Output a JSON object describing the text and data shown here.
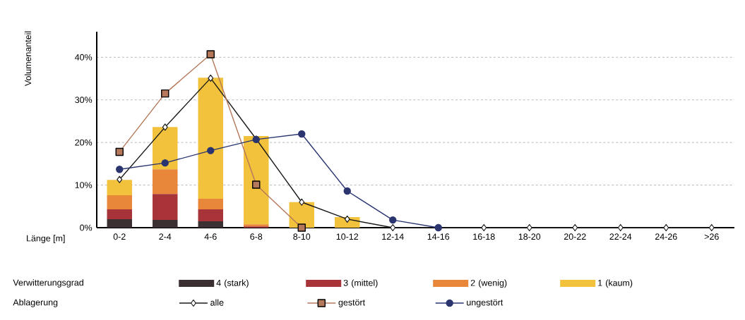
{
  "chart_data": {
    "type": "bar",
    "stacked": true,
    "xlabel": "Länge [m]",
    "ylabel": "Volumenanteil",
    "categories": [
      "0-2",
      "2-4",
      "4-6",
      "6-8",
      "8-10",
      "10-12",
      "12-14",
      "14-16",
      "16-18",
      "18-20",
      "20-22",
      "22-24",
      "24-26",
      ">26"
    ],
    "series": [
      {
        "name": "4 (stark)",
        "color": "#3a3032",
        "values": [
          2,
          1.8,
          1.5,
          0,
          0,
          0,
          0,
          0,
          0,
          0,
          0,
          0,
          0,
          0
        ]
      },
      {
        "name": "3 (mittel)",
        "color": "#a8343a",
        "values": [
          2.3,
          6.1,
          2.8,
          0.3,
          0,
          0,
          0,
          0,
          0,
          0,
          0,
          0,
          0,
          0
        ]
      },
      {
        "name": "2 (wenig)",
        "color": "#e8873a",
        "values": [
          3.3,
          5.8,
          2.5,
          0.5,
          0,
          0,
          0,
          0,
          0,
          0,
          0,
          0,
          0,
          0
        ]
      },
      {
        "name": "1 (kaum)",
        "color": "#f2c23c",
        "values": [
          3.6,
          9.9,
          28.4,
          20.7,
          6,
          2.5,
          0,
          0,
          0,
          0,
          0,
          0,
          0,
          0
        ]
      },
      {
        "name": "alle",
        "type": "line",
        "marker": "diamond",
        "color": "#1a1a1a",
        "values": [
          11.3,
          23.6,
          35.1,
          20.8,
          6,
          2,
          0,
          0,
          0,
          0,
          0,
          0,
          0,
          0
        ]
      },
      {
        "name": "gestört",
        "type": "line",
        "marker": "square",
        "color": "#b5785a",
        "values": [
          17.8,
          31.5,
          40.7,
          10.1,
          0,
          null,
          null,
          null,
          null,
          null,
          null,
          null,
          null,
          null
        ]
      },
      {
        "name": "ungestört",
        "type": "line",
        "marker": "circle",
        "color": "#2a3570",
        "values": [
          13.7,
          15.2,
          18.1,
          20.7,
          22,
          8.6,
          1.8,
          0,
          null,
          null,
          null,
          null,
          null,
          null
        ]
      }
    ],
    "ylim": [
      0,
      46
    ],
    "yticks": [
      {
        "value": 0,
        "label": "0%"
      },
      {
        "value": 10,
        "label": "10%"
      },
      {
        "value": 20,
        "label": "20%"
      },
      {
        "value": 30,
        "label": "30%"
      },
      {
        "value": 40,
        "label": "40%"
      }
    ],
    "grid": "y",
    "line_style": "solid",
    "legend": "bottom",
    "annotations": [
      "Verwitterungsgrad",
      "Ablagerung"
    ]
  }
}
